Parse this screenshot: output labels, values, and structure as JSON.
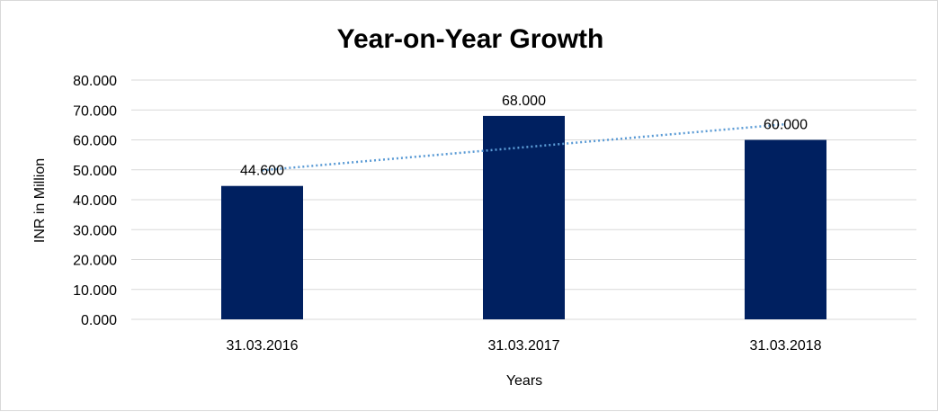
{
  "chart_data": {
    "type": "bar",
    "title": "Year-on-Year Growth",
    "xlabel": "Years",
    "ylabel": "INR in Million",
    "categories": [
      "31.03.2016",
      "31.03.2017",
      "31.03.2018"
    ],
    "values": [
      44.6,
      68.0,
      60.0
    ],
    "data_labels": [
      "44.600",
      "68.000",
      "60.000"
    ],
    "ylim": [
      0,
      80
    ],
    "yticks": [
      0,
      10,
      20,
      30,
      40,
      50,
      60,
      70,
      80
    ],
    "ytick_labels": [
      "0.000",
      "10.000",
      "20.000",
      "30.000",
      "40.000",
      "50.000",
      "60.000",
      "70.000",
      "80.000"
    ],
    "trendline": "linear",
    "grid": true,
    "bar_color": "#002060",
    "trendline_color": "#5b9bd5"
  }
}
